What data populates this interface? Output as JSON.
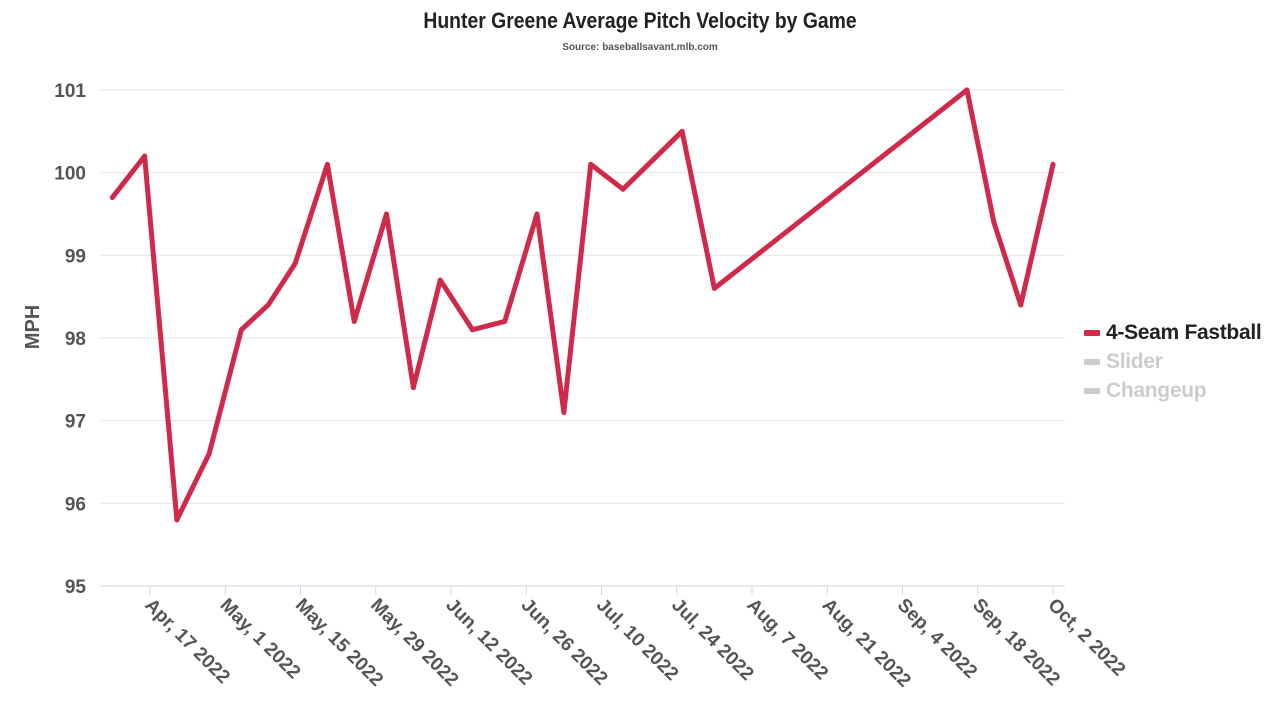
{
  "chart_data": {
    "type": "line",
    "title": "Hunter Greene Average Pitch Velocity by Game",
    "subtitle": "Source: baseballsavant.mlb.com",
    "xlabel": "",
    "ylabel": "MPH",
    "ylim": [
      95,
      101
    ],
    "yticks": [
      "95",
      "96",
      "97",
      "98",
      "99",
      "100",
      "101"
    ],
    "xticks": [
      "Apr, 17 2022",
      "May, 1 2022",
      "May, 15 2022",
      "May, 29 2022",
      "Jun, 12 2022",
      "Jun, 26 2022",
      "Jul, 10 2022",
      "Jul, 24 2022",
      "Aug, 7 2022",
      "Aug, 21 2022",
      "Sep, 4 2022",
      "Sep, 18 2022",
      "Oct, 2 2022"
    ],
    "grid": true,
    "legend_position": "right",
    "series": [
      {
        "name": "4-Seam Fastball",
        "color": "#cf2a4a",
        "visible": true,
        "x": [
          "2022-04-10",
          "2022-04-16",
          "2022-04-22",
          "2022-04-28",
          "2022-05-04",
          "2022-05-09",
          "2022-05-14",
          "2022-05-20",
          "2022-05-25",
          "2022-05-31",
          "2022-06-05",
          "2022-06-10",
          "2022-06-16",
          "2022-06-22",
          "2022-06-28",
          "2022-07-03",
          "2022-07-08",
          "2022-07-14",
          "2022-07-25",
          "2022-07-31",
          "2022-09-16",
          "2022-09-21",
          "2022-09-26",
          "2022-10-02"
        ],
        "values": [
          99.7,
          100.2,
          95.8,
          96.6,
          98.1,
          98.4,
          98.9,
          100.1,
          98.2,
          99.5,
          97.4,
          98.7,
          98.1,
          98.2,
          99.5,
          97.1,
          100.1,
          99.8,
          100.5,
          98.6,
          101.0,
          99.4,
          98.4,
          100.1
        ]
      },
      {
        "name": "Slider",
        "color": "#cccccc",
        "visible": false,
        "x": [],
        "values": []
      },
      {
        "name": "Changeup",
        "color": "#cccccc",
        "visible": false,
        "x": [],
        "values": []
      }
    ]
  }
}
